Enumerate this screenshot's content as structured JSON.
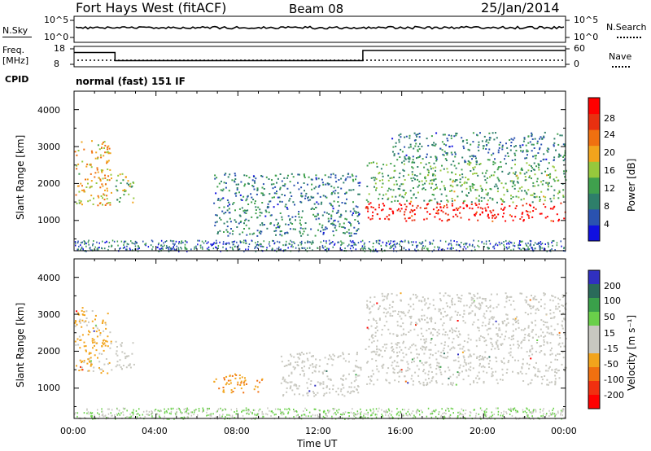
{
  "header": {
    "station": "Fort Hays West (fitACF)",
    "beam": "Beam 08",
    "date": "25/Jan/2014"
  },
  "noise_panel": {
    "left_label": "N.Sky",
    "right_label": "N.Search",
    "left_ticks": [
      "10^5",
      "10^0"
    ],
    "right_ticks": [
      "10^5",
      "10^0"
    ]
  },
  "freq_panel": {
    "left_label_line1": "Freq.",
    "left_label_line2": "[MHz]",
    "left_ticks": [
      "18",
      "8"
    ],
    "right_label": "Nave",
    "right_ticks": [
      "60",
      "0"
    ]
  },
  "cpid": {
    "label": "CPID",
    "text": "normal (fast) 151 IF"
  },
  "x_axis": {
    "label": "Time UT",
    "ticks": [
      "00:00",
      "04:00",
      "08:00",
      "12:00",
      "16:00",
      "20:00",
      "00:00"
    ]
  },
  "power_panel": {
    "ylabel": "Slant Range [km]",
    "yticks": [
      "1000",
      "2000",
      "3000",
      "4000"
    ],
    "colorbar_label": "Power [dB]",
    "colorbar_ticks": [
      "4",
      "8",
      "12",
      "16",
      "20",
      "24",
      "28"
    ]
  },
  "velocity_panel": {
    "ylabel": "Slant Range [km]",
    "yticks": [
      "1000",
      "2000",
      "3000",
      "4000"
    ],
    "colorbar_label": "Velocity [m s⁻¹]",
    "colorbar_ticks": [
      "200",
      "100",
      "50",
      "15",
      "-15",
      "-50",
      "-100",
      "-200"
    ]
  },
  "colors": {
    "power_scale": [
      "#1010e0",
      "#2a52b0",
      "#2e7f6a",
      "#3fa04d",
      "#96c83c",
      "#f2a41c",
      "#f07010",
      "#e83010",
      "#ff0000"
    ],
    "velocity_scale": [
      "#3030c0",
      "#2a6a5a",
      "#3aa04a",
      "#6ad04a",
      "#c8c8c0",
      "#c8c8c0",
      "#f2a41c",
      "#f07010",
      "#f03010",
      "#ff0000"
    ]
  },
  "chart_data": [
    {
      "type": "heatmap",
      "name": "power",
      "x": [
        "00:00",
        "04:00",
        "08:00",
        "12:00",
        "16:00",
        "20:00",
        "00:00"
      ],
      "xlim_hours": [
        0,
        24
      ],
      "ylim_km": [
        180,
        4500
      ],
      "zlim_dB": [
        0,
        30
      ],
      "regions": [
        {
          "t": [
            0.0,
            1.8
          ],
          "r": [
            1400,
            3200
          ],
          "level_dB": 18
        },
        {
          "t": [
            2.0,
            2.9
          ],
          "r": [
            1500,
            2300
          ],
          "level_dB": 14
        },
        {
          "t": [
            6.8,
            14.0
          ],
          "r": [
            600,
            2300
          ],
          "level_dB": 8
        },
        {
          "t": [
            14.2,
            24.0
          ],
          "r": [
            1000,
            1500
          ],
          "level_dB": 28
        },
        {
          "t": [
            14.2,
            24.0
          ],
          "r": [
            1500,
            2600
          ],
          "level_dB": 12
        },
        {
          "t": [
            15.5,
            24.0
          ],
          "r": [
            2600,
            3400
          ],
          "level_dB": 8
        }
      ]
    },
    {
      "type": "heatmap",
      "name": "velocity",
      "x": [
        "00:00",
        "04:00",
        "08:00",
        "12:00",
        "16:00",
        "20:00",
        "00:00"
      ],
      "xlim_hours": [
        0,
        24
      ],
      "ylim_km": [
        180,
        4500
      ],
      "zlim_ms": [
        -200,
        200
      ],
      "regions": [
        {
          "t": [
            0.0,
            1.8
          ],
          "r": [
            1400,
            3200
          ],
          "vel_ms": -50
        },
        {
          "t": [
            2.0,
            2.9
          ],
          "r": [
            1500,
            2300
          ],
          "vel_ms": 0
        },
        {
          "t": [
            6.8,
            9.2
          ],
          "r": [
            900,
            1400
          ],
          "vel_ms": -70
        },
        {
          "t": [
            10.0,
            14.0
          ],
          "r": [
            800,
            2000
          ],
          "vel_ms": 0
        },
        {
          "t": [
            14.2,
            24.0
          ],
          "r": [
            1100,
            3600
          ],
          "vel_ms": 0
        }
      ]
    },
    {
      "type": "line",
      "name": "frequency",
      "x_hours": [
        0,
        2,
        2,
        14.1,
        14.1,
        24
      ],
      "y_MHz": [
        15,
        15,
        11,
        11,
        16,
        16
      ],
      "ylim": [
        8,
        18
      ]
    }
  ]
}
